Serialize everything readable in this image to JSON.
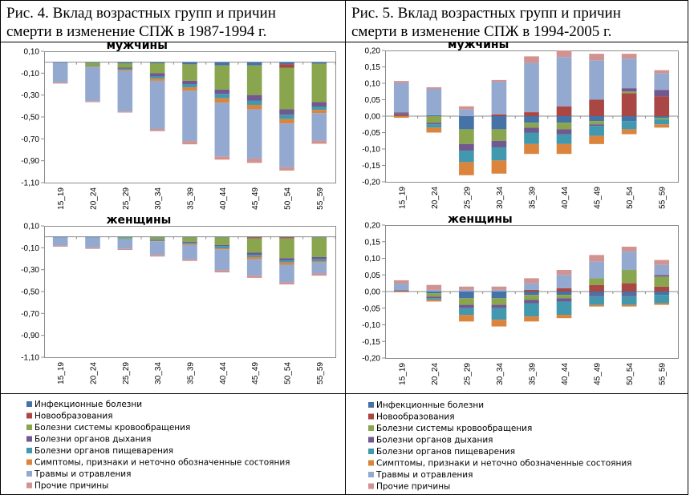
{
  "figures": [
    {
      "title_line1": "Рис. 4. Вклад возрастных групп и причин",
      "title_line2": "смерти в изменение СПЖ в 1987-1994 г."
    },
    {
      "title_line1": "Рис. 5. Вклад возрастных групп и причин",
      "title_line2": "смерти в изменение СПЖ в 1994-2005 г."
    }
  ],
  "legend": {
    "entries": [
      "Инфекционные болезни",
      "Новообразования",
      "Болезни системы кровообращения",
      "Болезни органов дыхания",
      "Болезни органов пищеварения",
      "Симптомы, признаки и неточно обозначенные состояния",
      "Травмы и отравления",
      "Прочие причины"
    ],
    "colors": [
      "#4572a7",
      "#aa4643",
      "#89a54e",
      "#71588f",
      "#4198af",
      "#db843d",
      "#93a9cf",
      "#d19392"
    ]
  },
  "chart_data": [
    {
      "type": "bar",
      "stacked": true,
      "title": "мужчины",
      "categories": [
        "15_19",
        "20_24",
        "25_29",
        "30_34",
        "35_39",
        "40_44",
        "45_49",
        "50_54",
        "55_59"
      ],
      "ylim": [
        -1.1,
        0.1
      ],
      "yticks": [
        "0,10",
        "-0,10",
        "-0,30",
        "-0,50",
        "-0,70",
        "-0,90",
        "-1,10"
      ],
      "series": [
        {
          "name": "Инфекционные болезни",
          "values": [
            -0.005,
            -0.005,
            -0.01,
            -0.01,
            -0.02,
            -0.03,
            -0.03,
            -0.02,
            -0.015
          ]
        },
        {
          "name": "Новообразования",
          "values": [
            0,
            0,
            0,
            0,
            0,
            0,
            0,
            -0.03,
            0
          ]
        },
        {
          "name": "Болезни системы кровообращения",
          "values": [
            0,
            -0.03,
            -0.04,
            -0.09,
            -0.15,
            -0.22,
            -0.27,
            -0.38,
            -0.35
          ]
        },
        {
          "name": "Болезни органов дыхания",
          "values": [
            0,
            0,
            -0.01,
            -0.03,
            -0.03,
            -0.04,
            -0.05,
            -0.05,
            -0.04
          ]
        },
        {
          "name": "Болезни органов пищеварения",
          "values": [
            0,
            -0.005,
            -0.01,
            -0.02,
            -0.03,
            -0.04,
            -0.04,
            -0.04,
            -0.03
          ]
        },
        {
          "name": "Симптомы, признаки и неточно обозначенные состояния",
          "values": [
            0,
            -0.005,
            -0.01,
            -0.02,
            -0.03,
            -0.04,
            -0.04,
            -0.04,
            -0.03
          ]
        },
        {
          "name": "Травмы и отравления",
          "values": [
            -0.18,
            -0.31,
            -0.37,
            -0.44,
            -0.46,
            -0.49,
            -0.45,
            -0.4,
            -0.25
          ]
        },
        {
          "name": "Прочие причины",
          "values": [
            -0.01,
            -0.01,
            -0.01,
            -0.02,
            -0.03,
            -0.03,
            -0.04,
            -0.03,
            -0.03
          ]
        }
      ]
    },
    {
      "type": "bar",
      "stacked": true,
      "title": "женщины",
      "categories": [
        "15_19",
        "20_24",
        "25_29",
        "30_34",
        "35_39",
        "40_44",
        "45_49",
        "50_54",
        "55_59"
      ],
      "ylim": [
        -1.1,
        0.1
      ],
      "yticks": [
        "0,10",
        "-0,10",
        "-0,30",
        "-0,50",
        "-0,70",
        "-0,90",
        "-1,10"
      ],
      "series": [
        {
          "name": "Инфекционные болезни",
          "values": [
            -0.005,
            -0.005,
            -0.005,
            -0.005,
            -0.005,
            -0.005,
            -0.005,
            -0.005,
            -0.005
          ]
        },
        {
          "name": "Новообразования",
          "values": [
            0,
            0,
            0,
            0,
            0,
            0,
            -0.01,
            -0.01,
            0
          ]
        },
        {
          "name": "Болезни системы кровообращения",
          "values": [
            0,
            0,
            -0.01,
            -0.02,
            -0.04,
            -0.07,
            -0.13,
            -0.18,
            -0.18
          ]
        },
        {
          "name": "Болезни органов дыхания",
          "values": [
            0,
            0,
            0,
            -0.005,
            -0.01,
            -0.01,
            -0.02,
            -0.02,
            -0.02
          ]
        },
        {
          "name": "Болезни органов пищеварения",
          "values": [
            0,
            0,
            -0.005,
            -0.01,
            -0.01,
            -0.02,
            -0.02,
            -0.02,
            -0.02
          ]
        },
        {
          "name": "Симптомы, признаки и неточно обозначенные состояния",
          "values": [
            0,
            0,
            0,
            -0.005,
            -0.01,
            -0.01,
            -0.02,
            -0.02,
            -0.01
          ]
        },
        {
          "name": "Травмы и отравления",
          "values": [
            -0.075,
            -0.095,
            -0.09,
            -0.12,
            -0.13,
            -0.19,
            -0.15,
            -0.16,
            -0.1
          ]
        },
        {
          "name": "Прочие причины",
          "values": [
            -0.01,
            -0.01,
            -0.01,
            -0.015,
            -0.015,
            -0.02,
            -0.02,
            -0.02,
            -0.02
          ]
        }
      ]
    },
    {
      "type": "bar",
      "stacked": true,
      "title": "мужчины",
      "categories": [
        "15_19",
        "20_24",
        "25_29",
        "30_34",
        "35_39",
        "40_44",
        "45_49",
        "50_54",
        "55_59"
      ],
      "ylim": [
        -0.2,
        0.2
      ],
      "yticks": [
        "0,20",
        "0,15",
        "0,10",
        "0,05",
        "0,00",
        "-0,05",
        "-0,10",
        "-0,15",
        "-0,20"
      ],
      "series": [
        {
          "name": "Инфекционные болезни",
          "values": [
            0.003,
            0.003,
            -0.04,
            -0.04,
            -0.02,
            -0.02,
            -0.015,
            -0.015,
            -0.005
          ]
        },
        {
          "name": "Новообразования",
          "values": [
            0.005,
            0,
            0,
            0.005,
            0.012,
            0.03,
            0.05,
            0.07,
            0.06
          ]
        },
        {
          "name": "Болезни системы кровообращения",
          "values": [
            0,
            -0.02,
            -0.045,
            -0.035,
            -0.015,
            -0.02,
            -0.01,
            0.005,
            -0.005
          ]
        },
        {
          "name": "Болезни органов дыхания",
          "values": [
            0.003,
            -0.005,
            -0.02,
            -0.02,
            -0.015,
            -0.015,
            -0.005,
            0.01,
            0.02
          ]
        },
        {
          "name": "Болезни органов пищеварения",
          "values": [
            0,
            -0.01,
            -0.035,
            -0.04,
            -0.035,
            -0.03,
            -0.03,
            -0.025,
            -0.015
          ]
        },
        {
          "name": "Симптомы, признаки и неточно обозначенные состояния",
          "values": [
            -0.005,
            -0.015,
            -0.04,
            -0.04,
            -0.03,
            -0.03,
            -0.025,
            -0.015,
            -0.01
          ]
        },
        {
          "name": "Травмы и отравления",
          "values": [
            0.09,
            0.08,
            0.02,
            0.1,
            0.15,
            0.15,
            0.12,
            0.09,
            0.05
          ]
        },
        {
          "name": "Прочие причины",
          "values": [
            0.006,
            0.005,
            0.01,
            0.005,
            0.02,
            0.02,
            0.02,
            0.015,
            0.01
          ]
        }
      ]
    },
    {
      "type": "bar",
      "stacked": true,
      "title": "женщины",
      "categories": [
        "15_19",
        "20_24",
        "25_29",
        "30_34",
        "35_39",
        "40_44",
        "45_49",
        "50_54",
        "55_59"
      ],
      "ylim": [
        -0.2,
        0.2
      ],
      "yticks": [
        "0,20",
        "0,15",
        "0,10",
        "0,05",
        "0,00",
        "-0,05",
        "-0,10",
        "-0,15",
        "-0,20"
      ],
      "series": [
        {
          "name": "Инфекционные болезни",
          "values": [
            0.002,
            -0.005,
            -0.02,
            -0.02,
            -0.01,
            -0.01,
            -0.01,
            -0.01,
            -0.01
          ]
        },
        {
          "name": "Новообразования",
          "values": [
            0.002,
            0,
            0,
            0,
            0.005,
            0.01,
            0.02,
            0.025,
            0.015
          ]
        },
        {
          "name": "Болезни системы кровообращения",
          "values": [
            0,
            -0.01,
            -0.02,
            -0.02,
            -0.015,
            -0.01,
            0.02,
            0.04,
            0.03
          ]
        },
        {
          "name": "Болезни органов дыхания",
          "values": [
            0,
            -0.005,
            -0.01,
            -0.01,
            -0.01,
            -0.01,
            -0.005,
            -0.005,
            0.005
          ]
        },
        {
          "name": "Болезни органов пищеварения",
          "values": [
            0,
            -0.005,
            -0.02,
            -0.035,
            -0.04,
            -0.04,
            -0.025,
            -0.025,
            -0.025
          ]
        },
        {
          "name": "Симптомы, признаки и неточно обозначенные состояния",
          "values": [
            -0.002,
            -0.005,
            -0.02,
            -0.02,
            -0.015,
            -0.01,
            -0.005,
            -0.005,
            -0.005
          ]
        },
        {
          "name": "Травмы и отравления",
          "values": [
            0.02,
            0.005,
            0.005,
            0.005,
            0.02,
            0.04,
            0.05,
            0.055,
            0.03
          ]
        },
        {
          "name": "Прочие причины",
          "values": [
            0.01,
            0.015,
            0.01,
            0.01,
            0.015,
            0.015,
            0.02,
            0.015,
            0.015
          ]
        }
      ]
    }
  ]
}
